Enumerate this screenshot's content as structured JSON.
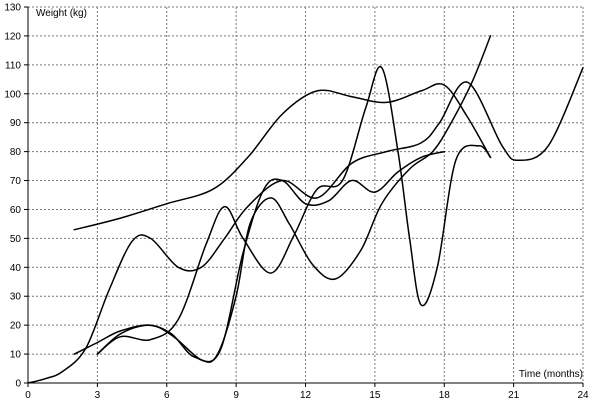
{
  "chart_data": {
    "type": "line",
    "xlabel": "Time (months)",
    "ylabel": "Weight (kg)",
    "xlim": [
      0,
      24
    ],
    "ylim": [
      0,
      130
    ],
    "x_ticks": [
      0,
      3,
      6,
      9,
      12,
      15,
      18,
      21,
      24
    ],
    "y_ticks": [
      0,
      10,
      20,
      30,
      40,
      50,
      60,
      70,
      80,
      90,
      100,
      110,
      120,
      130
    ],
    "grid": true,
    "series": [
      {
        "x": [
          0,
          0.75,
          1.5,
          2.5,
          3.5,
          4.5,
          5.3,
          6.5,
          7.5,
          8.5,
          9.5,
          11,
          12.5,
          14,
          15.5,
          17,
          17.8,
          19,
          20.5,
          21.2,
          22.5,
          24
        ],
        "y": [
          0,
          1.5,
          4,
          12,
          32,
          49,
          50,
          40,
          40,
          50,
          61,
          70,
          64,
          76,
          80,
          83,
          90,
          104,
          82,
          77,
          82,
          109
        ]
      },
      {
        "x": [
          2,
          4,
          6,
          8,
          9.5,
          11,
          12.5,
          14,
          15.5,
          17,
          18,
          19,
          20
        ],
        "y": [
          53,
          57,
          62,
          67,
          78,
          93,
          101,
          99,
          97,
          101,
          103,
          92,
          78
        ]
      },
      {
        "x": [
          2,
          3,
          4,
          5.3,
          6.3,
          7.5,
          8.2,
          9,
          9.6,
          10.5,
          11.3,
          12.3,
          13.3,
          14.4,
          15.3,
          16.5,
          17.5,
          18.3,
          19.2,
          20
        ],
        "y": [
          10,
          14,
          18,
          20,
          16,
          8,
          10,
          30,
          55,
          64,
          55,
          41,
          36,
          46,
          62,
          74,
          80,
          90,
          104,
          120
        ]
      },
      {
        "x": [
          3,
          4,
          5.3,
          6.5,
          7.7,
          8.5,
          9.3,
          10.5,
          11.5,
          12.5,
          13.6,
          14.6,
          15.3,
          16,
          16.5,
          17,
          17.7,
          18.5,
          19.5,
          20
        ],
        "y": [
          10,
          16,
          15,
          22,
          48,
          61,
          50,
          38,
          51,
          67,
          70,
          95,
          109,
          80,
          50,
          27,
          40,
          77,
          82,
          78
        ]
      },
      {
        "x": [
          3,
          4,
          5.2,
          6.2,
          7.2,
          8.3,
          9.3,
          10.2,
          11,
          12,
          13,
          14,
          15,
          16,
          17,
          18
        ],
        "y": [
          10,
          17,
          20,
          17,
          9,
          11,
          45,
          67,
          70,
          62,
          63,
          70,
          66,
          73,
          78,
          80
        ]
      }
    ]
  }
}
